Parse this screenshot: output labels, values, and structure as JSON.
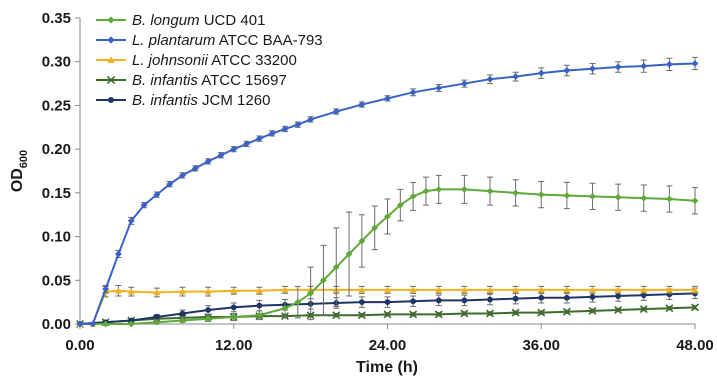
{
  "chart_data": {
    "type": "line",
    "title": "",
    "xlabel": "Time (h)",
    "ylabel": "OD",
    "ylabel_sub": "600",
    "xlim": [
      0,
      48
    ],
    "ylim": [
      0,
      0.35
    ],
    "xticks": [
      0,
      12,
      24,
      36,
      48
    ],
    "xtick_labels": [
      "0.00",
      "12.00",
      "24.00",
      "36.00",
      "48.00"
    ],
    "yticks": [
      0,
      0.05,
      0.1,
      0.15,
      0.2,
      0.25,
      0.3,
      0.35
    ],
    "ytick_labels": [
      "0.00",
      "0.05",
      "0.10",
      "0.15",
      "0.20",
      "0.25",
      "0.30",
      "0.35"
    ],
    "grid": false,
    "legend_position": "top-left",
    "series": [
      {
        "name": "B. longum UCD 401",
        "name_italic": "B. longum",
        "name_rest": " UCD 401",
        "color": "#5fa83a",
        "marker": "diamond",
        "x": [
          0,
          2,
          4,
          6,
          8,
          10,
          12,
          14,
          16,
          17,
          18,
          19,
          20,
          21,
          22,
          23,
          24,
          25,
          26,
          27,
          28,
          30,
          32,
          34,
          36,
          38,
          40,
          42,
          44,
          46,
          48
        ],
        "y": [
          0,
          0,
          0,
          0.002,
          0.004,
          0.006,
          0.008,
          0.01,
          0.018,
          0.025,
          0.035,
          0.05,
          0.065,
          0.08,
          0.095,
          0.11,
          0.123,
          0.136,
          0.146,
          0.152,
          0.154,
          0.154,
          0.152,
          0.15,
          0.148,
          0.147,
          0.146,
          0.145,
          0.144,
          0.143,
          0.141
        ],
        "err": [
          0,
          0,
          0,
          0.002,
          0.002,
          0.003,
          0.004,
          0.005,
          0.01,
          0.018,
          0.03,
          0.04,
          0.045,
          0.048,
          0.03,
          0.025,
          0.02,
          0.018,
          0.016,
          0.016,
          0.016,
          0.016,
          0.016,
          0.015,
          0.015,
          0.015,
          0.015,
          0.015,
          0.015,
          0.015,
          0.015
        ]
      },
      {
        "name": "L. plantarum ATCC BAA-793",
        "name_italic": "L. plantarum",
        "name_rest": " ATCC BAA-793",
        "color": "#3a62c4",
        "marker": "diamond",
        "x": [
          0,
          1,
          2,
          3,
          4,
          5,
          6,
          7,
          8,
          9,
          10,
          11,
          12,
          13,
          14,
          15,
          16,
          17,
          18,
          20,
          22,
          24,
          26,
          28,
          30,
          32,
          34,
          36,
          38,
          40,
          42,
          44,
          46,
          48
        ],
        "y": [
          0,
          0,
          0.04,
          0.08,
          0.118,
          0.136,
          0.148,
          0.16,
          0.17,
          0.178,
          0.186,
          0.193,
          0.2,
          0.206,
          0.212,
          0.218,
          0.223,
          0.228,
          0.234,
          0.243,
          0.251,
          0.258,
          0.265,
          0.27,
          0.275,
          0.28,
          0.283,
          0.287,
          0.29,
          0.292,
          0.294,
          0.295,
          0.297,
          0.298
        ],
        "err": [
          0,
          0,
          0.004,
          0.004,
          0.004,
          0.003,
          0.003,
          0.003,
          0.003,
          0.003,
          0.003,
          0.003,
          0.003,
          0.003,
          0.003,
          0.003,
          0.003,
          0.003,
          0.003,
          0.003,
          0.003,
          0.003,
          0.004,
          0.004,
          0.004,
          0.005,
          0.005,
          0.006,
          0.006,
          0.006,
          0.006,
          0.007,
          0.007,
          0.007
        ]
      },
      {
        "name": "L. johnsonii ATCC 33200",
        "name_italic": "L. johnsonii",
        "name_rest": " ATCC 33200",
        "color": "#f2b01e",
        "marker": "triangle",
        "x": [
          0,
          1,
          2,
          3,
          4,
          6,
          8,
          10,
          12,
          14,
          16,
          18,
          20,
          22,
          24,
          26,
          28,
          30,
          32,
          34,
          36,
          38,
          40,
          42,
          44,
          46,
          48
        ],
        "y": [
          0,
          0,
          0.037,
          0.038,
          0.037,
          0.036,
          0.037,
          0.037,
          0.038,
          0.038,
          0.039,
          0.039,
          0.039,
          0.039,
          0.039,
          0.039,
          0.039,
          0.039,
          0.039,
          0.039,
          0.039,
          0.039,
          0.039,
          0.039,
          0.039,
          0.039,
          0.039
        ],
        "err": [
          0,
          0,
          0.006,
          0.006,
          0.005,
          0.005,
          0.005,
          0.005,
          0.004,
          0.004,
          0.004,
          0.004,
          0.004,
          0.004,
          0.004,
          0.004,
          0.004,
          0.004,
          0.004,
          0.004,
          0.004,
          0.004,
          0.004,
          0.004,
          0.004,
          0.004,
          0.004
        ]
      },
      {
        "name": "B. infantis ATCC 15697",
        "name_italic": "B. infantis",
        "name_rest": " ATCC 15697",
        "color": "#3d6b2a",
        "marker": "x",
        "x": [
          0,
          2,
          4,
          6,
          8,
          10,
          12,
          14,
          16,
          18,
          20,
          22,
          24,
          26,
          28,
          30,
          32,
          34,
          36,
          38,
          40,
          42,
          44,
          46,
          48
        ],
        "y": [
          0,
          0.002,
          0.004,
          0.006,
          0.007,
          0.008,
          0.008,
          0.009,
          0.009,
          0.01,
          0.01,
          0.01,
          0.011,
          0.011,
          0.011,
          0.012,
          0.012,
          0.013,
          0.013,
          0.014,
          0.015,
          0.016,
          0.017,
          0.018,
          0.019
        ],
        "err": [
          0,
          0.001,
          0.001,
          0.002,
          0.002,
          0.002,
          0.002,
          0.002,
          0.002,
          0.002,
          0.002,
          0.002,
          0.002,
          0.002,
          0.002,
          0.002,
          0.002,
          0.002,
          0.002,
          0.002,
          0.002,
          0.002,
          0.002,
          0.002,
          0.002
        ]
      },
      {
        "name": "B. infantis JCM 1260",
        "name_italic": "B. infantis",
        "name_rest": "  JCM 1260",
        "color": "#1f3566",
        "marker": "circle",
        "x": [
          0,
          2,
          4,
          6,
          8,
          10,
          12,
          14,
          16,
          18,
          20,
          22,
          24,
          26,
          28,
          30,
          32,
          34,
          36,
          38,
          40,
          42,
          44,
          46,
          48
        ],
        "y": [
          0,
          0.002,
          0.004,
          0.008,
          0.012,
          0.016,
          0.019,
          0.021,
          0.022,
          0.023,
          0.024,
          0.025,
          0.025,
          0.026,
          0.027,
          0.027,
          0.028,
          0.029,
          0.03,
          0.03,
          0.031,
          0.032,
          0.033,
          0.034,
          0.035
        ],
        "err": [
          0,
          0.001,
          0.002,
          0.003,
          0.004,
          0.005,
          0.005,
          0.006,
          0.006,
          0.006,
          0.006,
          0.006,
          0.006,
          0.006,
          0.006,
          0.006,
          0.006,
          0.006,
          0.006,
          0.006,
          0.006,
          0.006,
          0.006,
          0.006,
          0.006
        ]
      }
    ]
  }
}
